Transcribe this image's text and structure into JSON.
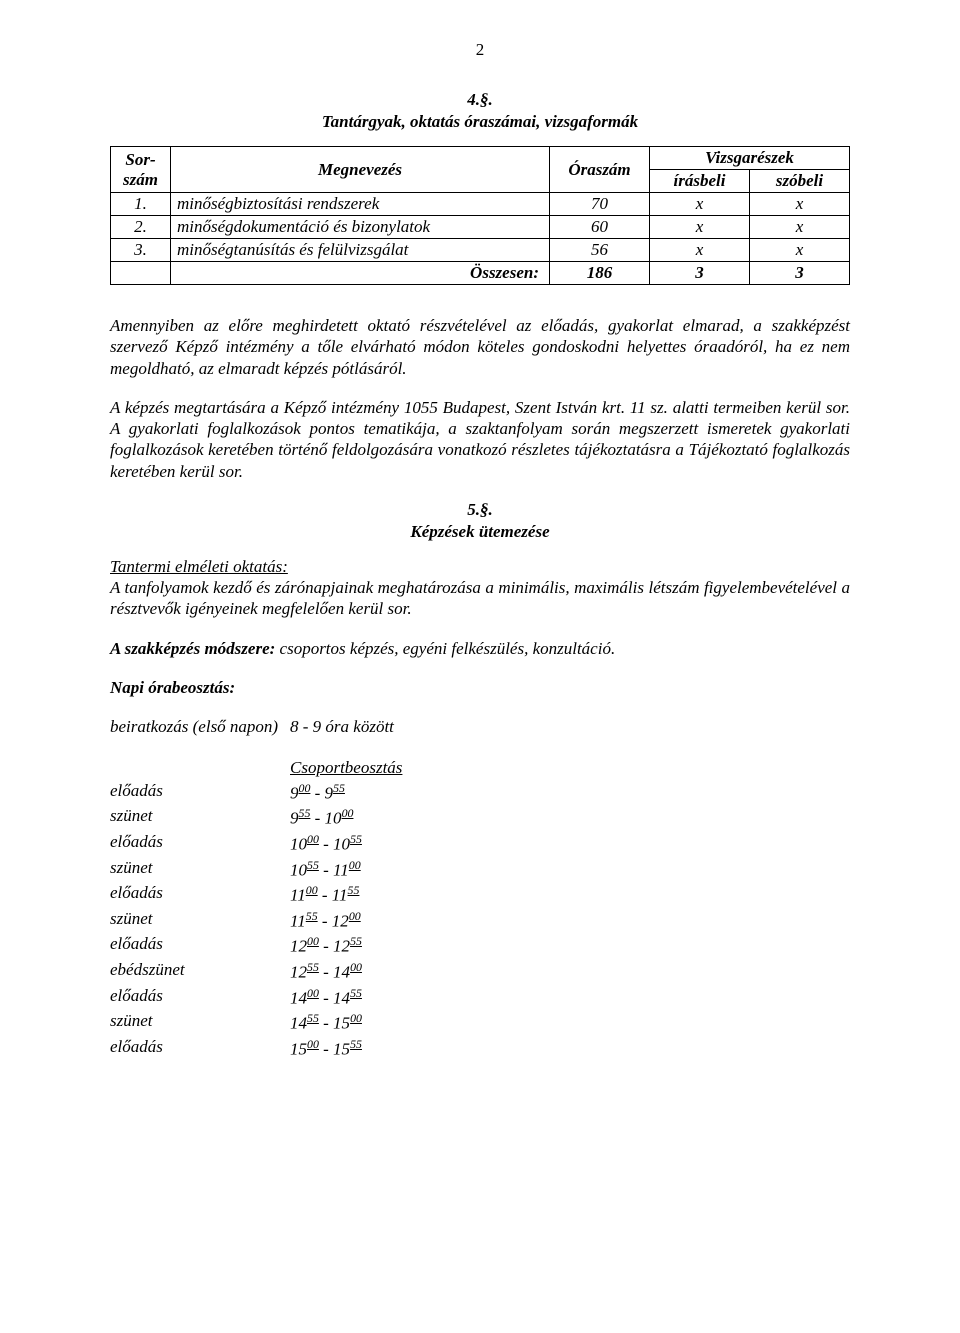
{
  "page_number": "2",
  "section4": {
    "num": "4.§.",
    "title": "Tantárgyak, oktatás óraszámai, vizsgaformák"
  },
  "table": {
    "headers": {
      "sor1": "Sor-",
      "sor2": "szám",
      "megnevezes": "Megnevezés",
      "oraszam": "Óraszám",
      "vizsgareszek": "Vizsgarészek",
      "irasbeli": "írásbeli",
      "szobeli": "szóbeli"
    },
    "rows": [
      {
        "n": "1.",
        "name": "minőségbiztosítási rendszerek",
        "h": "70",
        "w": "x",
        "o": "x"
      },
      {
        "n": "2.",
        "name": "minőségdokumentáció és bizonylatok",
        "h": "60",
        "w": "x",
        "o": "x"
      },
      {
        "n": "3.",
        "name": "minőségtanúsítás és felülvizsgálat",
        "h": "56",
        "w": "x",
        "o": "x"
      }
    ],
    "sum": {
      "label": "Összesen:",
      "h": "186",
      "w": "3",
      "o": "3"
    }
  },
  "para1": "Amennyiben az előre meghirdetett oktató részvételével az előadás, gyakorlat elmarad, a szakképzést szervező Képző intézmény a tőle elvárható módon köteles gondoskodni helyettes óraadóról, ha ez nem megoldható, az elmaradt képzés pótlásáról.",
  "para2": "A képzés megtartására a Képző intézmény 1055 Budapest, Szent István krt. 11 sz. alatti termeiben kerül sor. A gyakorlati foglalkozások pontos tematikája, a szaktanfolyam során megszerzett ismeretek gyakorlati foglalkozások keretében történő feldolgozására vonatkozó részletes tájékoztatásra a Tájékoztató foglalkozás keretében kerül sor.",
  "section5": {
    "num": "5.§.",
    "title": "Képzések ütemezése"
  },
  "tantermi_label": "Tantermi elméleti oktatás:",
  "para3": "A tanfolyamok kezdő és zárónapjainak meghatározása a minimális, maximális létszám figyelembevételével a résztvevők igényeinek megfelelően kerül sor.",
  "modszere_label": "A szakképzés módszere:",
  "modszere_text": " csoportos képzés, egyéni felkészülés, konzultáció.",
  "napi_label": "Napi órabeosztás:",
  "beiratkozas_label": "beiratkozás (első napon)",
  "beiratkozas_time": "8  -  9 óra között",
  "csoport_label": "Csoportbeosztás",
  "schedule": [
    {
      "label": "előadás",
      "a1": "9",
      "a2": "00",
      "b1": "9",
      "b2": "55"
    },
    {
      "label": "szünet",
      "a1": "9",
      "a2": "55",
      "b1": "10",
      "b2": "00"
    },
    {
      "label": "előadás",
      "a1": "10",
      "a2": "00",
      "b1": "10",
      "b2": "55"
    },
    {
      "label": "szünet",
      "a1": "10",
      "a2": "55",
      "b1": "11",
      "b2": "00"
    },
    {
      "label": "előadás",
      "a1": "11",
      "a2": "00",
      "b1": "11",
      "b2": "55"
    },
    {
      "label": "szünet",
      "a1": "11",
      "a2": "55",
      "b1": "12",
      "b2": "00"
    },
    {
      "label": "előadás",
      "a1": "12",
      "a2": "00",
      "b1": "12",
      "b2": "55"
    },
    {
      "label": "ebédszünet",
      "a1": "12",
      "a2": "55",
      "b1": "14",
      "b2": "00"
    },
    {
      "label": "előadás",
      "a1": "14",
      "a2": "00",
      "b1": "14",
      "b2": "55"
    },
    {
      "label": "szünet",
      "a1": "14",
      "a2": "55",
      "b1": "15",
      "b2": "00"
    },
    {
      "label": "előadás",
      "a1": "15",
      "a2": "00",
      "b1": "15",
      "b2": "55"
    }
  ]
}
